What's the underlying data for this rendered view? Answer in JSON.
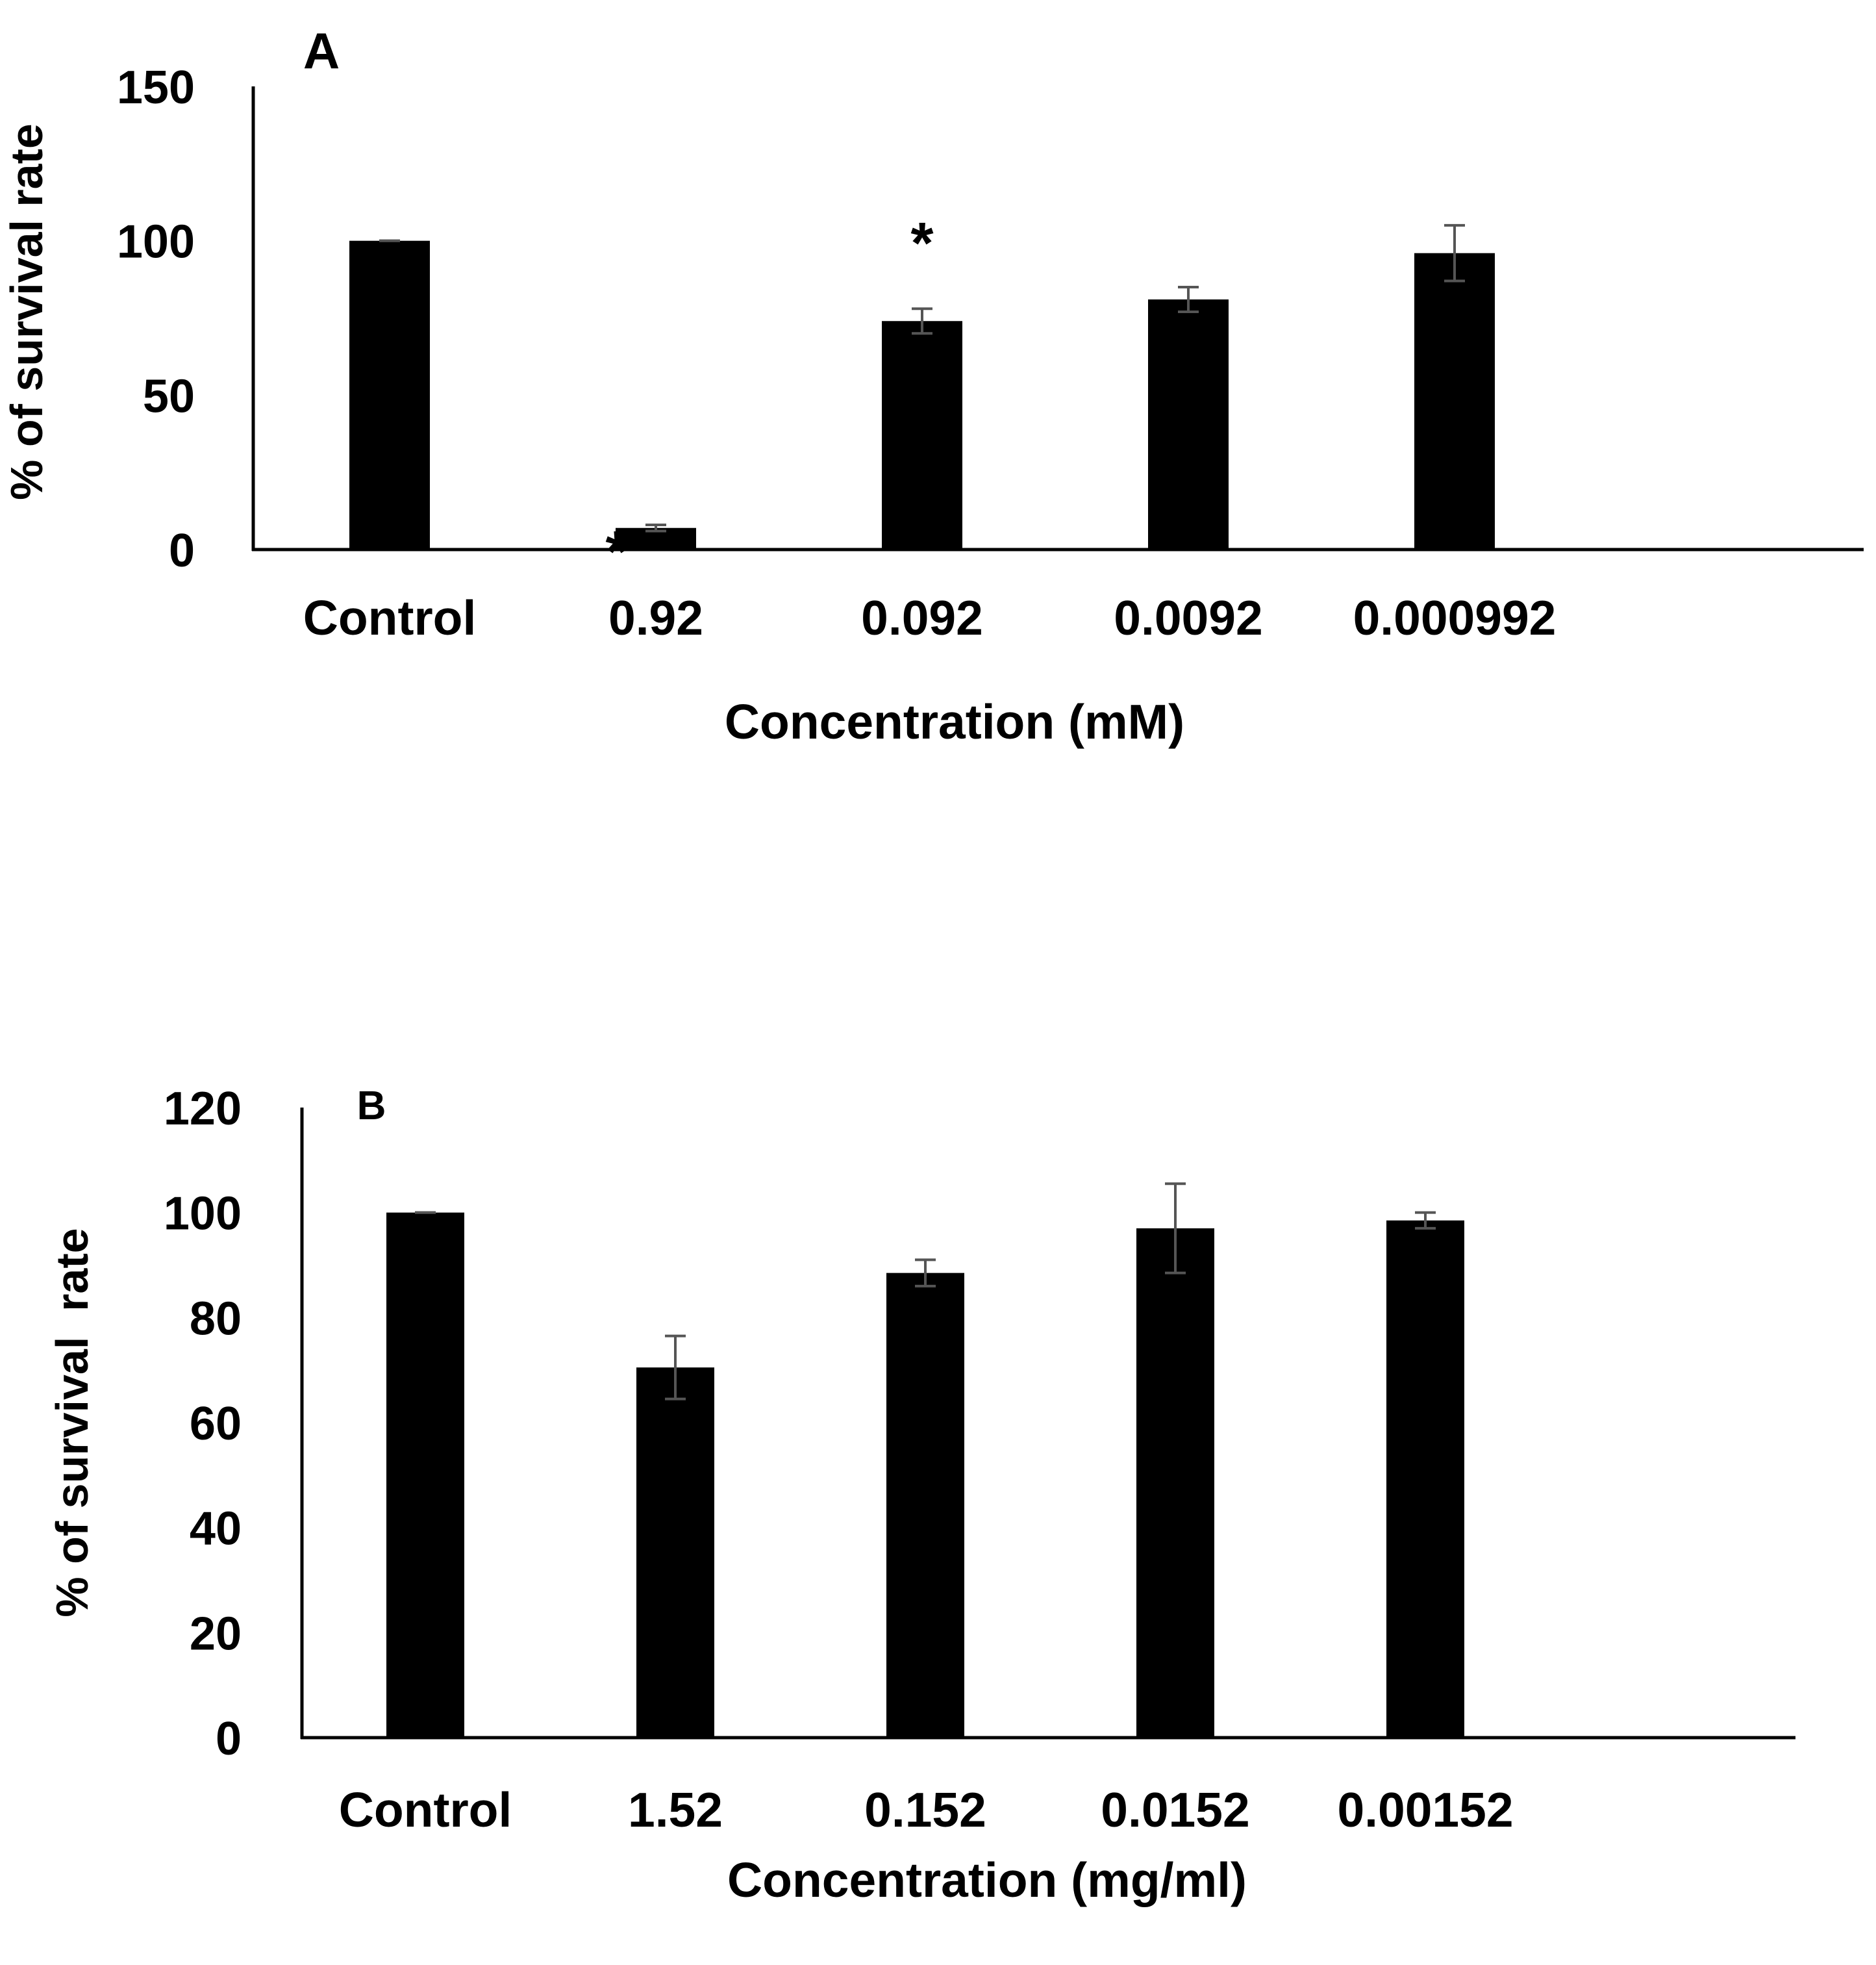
{
  "chart_data": [
    {
      "type": "bar",
      "panel_label": "A",
      "xlabel": "Concentration (mM)",
      "ylabel": "% of survival rate",
      "ylim": [
        0,
        150
      ],
      "yticks": [
        0,
        50,
        100,
        150
      ],
      "categories": [
        "Control",
        "0.92",
        "0.092",
        "0.0092",
        "0.000992"
      ],
      "values": [
        100,
        7,
        74,
        81,
        96
      ],
      "errors": [
        0,
        1,
        4,
        4,
        9
      ],
      "significance": [
        "",
        "*",
        "*",
        "",
        ""
      ],
      "bar_color": "#000000",
      "error_color": "#555555"
    },
    {
      "type": "bar",
      "panel_label": "B",
      "xlabel": "Concentration (mg/ml)",
      "ylabel": "% of survival  rate",
      "ylim": [
        0,
        120
      ],
      "yticks": [
        0,
        20,
        40,
        60,
        80,
        100,
        120
      ],
      "categories": [
        "Control",
        "1.52",
        "0.152",
        "0.0152",
        "0.00152"
      ],
      "values": [
        100,
        70.5,
        88.5,
        97,
        98.5
      ],
      "errors": [
        0,
        6,
        2.5,
        8.5,
        1.5
      ],
      "significance": [
        "",
        "",
        "",
        "",
        ""
      ],
      "bar_color": "#000000",
      "error_color": "#555555"
    }
  ]
}
